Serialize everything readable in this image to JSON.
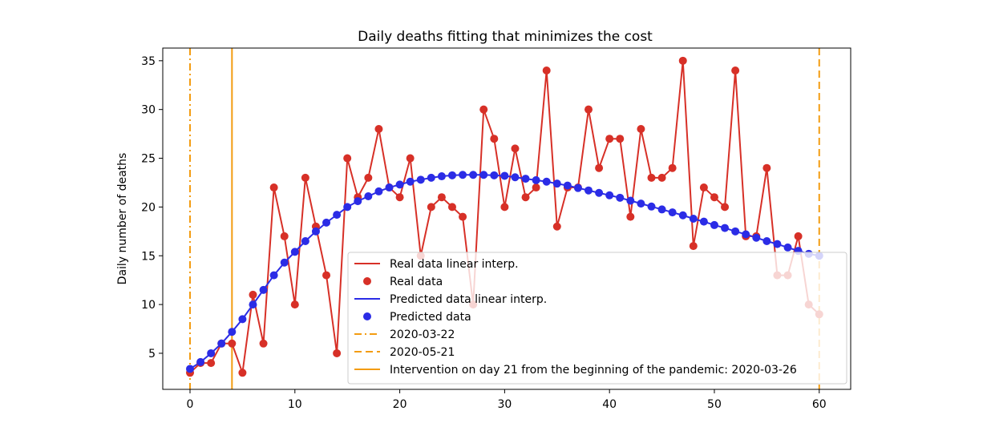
{
  "chart_data": {
    "type": "line",
    "title": "Daily deaths fitting that minimizes the cost",
    "xlabel": "",
    "ylabel": "Daily number of deaths",
    "xlim": [
      -2.6,
      63
    ],
    "ylim": [
      1.3,
      36.3
    ],
    "xticks": [
      0,
      10,
      20,
      30,
      40,
      50,
      60
    ],
    "yticks": [
      5,
      10,
      15,
      20,
      25,
      30,
      35
    ],
    "series": [
      {
        "name": "Real data",
        "line_label": "Real data linear interp.",
        "marker_label": "Real data",
        "color": "#d73027",
        "x": [
          0,
          1,
          2,
          3,
          4,
          5,
          6,
          7,
          8,
          9,
          10,
          11,
          12,
          13,
          14,
          15,
          16,
          17,
          18,
          19,
          20,
          21,
          22,
          23,
          24,
          25,
          26,
          27,
          28,
          29,
          30,
          31,
          32,
          33,
          34,
          35,
          36,
          37,
          38,
          39,
          40,
          41,
          42,
          43,
          44,
          45,
          46,
          47,
          48,
          49,
          50,
          51,
          52,
          53,
          54,
          55,
          56,
          57,
          58,
          59,
          60
        ],
        "values": [
          3,
          4,
          4,
          6,
          6,
          3,
          11,
          6,
          22,
          17,
          10,
          23,
          18,
          13,
          5,
          25,
          21,
          23,
          28,
          22,
          21,
          25,
          15,
          20,
          21,
          20,
          19,
          10,
          30,
          27,
          20,
          26,
          21,
          22,
          34,
          18,
          22,
          22,
          30,
          24,
          27,
          27,
          19,
          28,
          23,
          23,
          24,
          35,
          16,
          22,
          21,
          20,
          34,
          17,
          17,
          24,
          13,
          13,
          17,
          10,
          9
        ]
      },
      {
        "name": "Predicted data",
        "line_label": "Predicted data linear interp.",
        "marker_label": "Predicted data",
        "color": "#2b2ce6",
        "x": [
          0,
          1,
          2,
          3,
          4,
          5,
          6,
          7,
          8,
          9,
          10,
          11,
          12,
          13,
          14,
          15,
          16,
          17,
          18,
          19,
          20,
          21,
          22,
          23,
          24,
          25,
          26,
          27,
          28,
          29,
          30,
          31,
          32,
          33,
          34,
          35,
          36,
          37,
          38,
          39,
          40,
          41,
          42,
          43,
          44,
          45,
          46,
          47,
          48,
          49,
          50,
          51,
          52,
          53,
          54,
          55,
          56,
          57,
          58,
          59,
          60
        ],
        "values": [
          3.4,
          4.1,
          5.0,
          6.0,
          7.2,
          8.5,
          10.0,
          11.5,
          13.0,
          14.3,
          15.4,
          16.5,
          17.5,
          18.4,
          19.2,
          20.0,
          20.6,
          21.1,
          21.6,
          22.0,
          22.3,
          22.6,
          22.8,
          23.0,
          23.15,
          23.25,
          23.3,
          23.3,
          23.3,
          23.25,
          23.2,
          23.05,
          22.9,
          22.75,
          22.6,
          22.4,
          22.2,
          21.95,
          21.7,
          21.45,
          21.2,
          20.95,
          20.65,
          20.35,
          20.05,
          19.75,
          19.45,
          19.15,
          18.8,
          18.5,
          18.15,
          17.85,
          17.5,
          17.2,
          16.85,
          16.5,
          16.2,
          15.85,
          15.5,
          15.2,
          15.0
        ]
      }
    ],
    "vlines": [
      {
        "x": 0,
        "label": "2020-03-22",
        "style": "dashdot",
        "color": "#f39c12"
      },
      {
        "x": 60,
        "label": "2020-05-21",
        "style": "dashed",
        "color": "#f39c12"
      },
      {
        "x": 4,
        "label": "Intervention on day 21 from the beginning of the pandemic: 2020-03-26",
        "style": "solid",
        "color": "#f39c12"
      }
    ],
    "legend_position": "lower-right"
  }
}
